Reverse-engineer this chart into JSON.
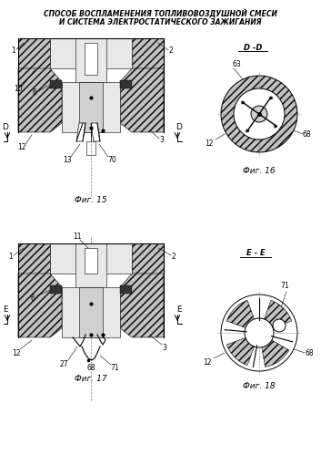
{
  "title_line1": "СПОСОБ ВОСПЛАМЕНЕНИЯ ТОПЛИВОВОЗДУШНОЙ СМЕСИ",
  "title_line2": "И СИСТЕМА ЭЛЕКТРОСТАТИЧЕСКОГО ЗАЖИГАНИЯ",
  "fig15_caption": "Фиг. 15",
  "fig16_caption": "Фиг. 16",
  "fig17_caption": "Фиг. 17",
  "fig18_caption": "Фиг. 18",
  "section_dd": "D -D",
  "section_ee": "E - E",
  "bg_color": "#ffffff",
  "hatch_gray": "#c0c0c0",
  "light_fill": "#e8e8e8",
  "mid_fill": "#d0d0d0",
  "white": "#ffffff",
  "black": "#000000"
}
